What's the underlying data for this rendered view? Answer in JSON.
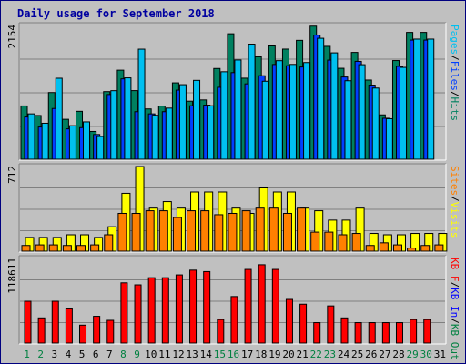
{
  "title": "Daily usage for September 2018",
  "colors": {
    "frame": "#000080",
    "background": "#c0c0c0",
    "title": "#0000a0",
    "pages": "#00c0f0",
    "files": "#0040ff",
    "hits": "#008060",
    "visits": "#ffff00",
    "sites": "#ff8000",
    "kb_in": "#0000ff",
    "kb_out": "#008040",
    "kb_f": "#ff0000",
    "weekday": "#000000",
    "weekend": "#008040"
  },
  "chart_data": [
    {
      "type": "bar",
      "panel": "top",
      "ymax_label": "2154",
      "ylim": [
        0,
        2154
      ],
      "legend": [
        "Pages",
        "Files",
        "Hits"
      ],
      "legend_sep": "/",
      "legend_colors": [
        "#00c0f0",
        "#0040ff",
        "#008060"
      ],
      "series": [
        {
          "name": "Hits",
          "color": "#008060",
          "values": [
            867,
            714,
            1081,
            653,
            781,
            459,
            1096,
            1439,
            1112,
            819,
            865,
            1236,
            943,
            963,
            1466,
            2021,
            1311,
            1653,
            1827,
            1776,
            1916,
            2143,
            1820,
            1469,
            1723,
            1281,
            724,
            1593,
            2043,
            2043
          ]
        },
        {
          "name": "Files",
          "color": "#0040ff",
          "values": [
            690,
            530,
            826,
            500,
            520,
            410,
            1050,
            1300,
            775,
            740,
            775,
            1120,
            870,
            880,
            1165,
            1400,
            1220,
            1350,
            1530,
            1510,
            1490,
            2000,
            1600,
            1330,
            1580,
            1200,
            670,
            1500,
            1920,
            1920
          ]
        },
        {
          "name": "Pages",
          "color": "#00c0f0",
          "values": [
            740,
            590,
            1310,
            551,
            612,
            378,
            1111,
            1316,
            1775,
            717,
            832,
            1207,
            1276,
            870,
            1414,
            1602,
            1855,
            1262,
            1591,
            1531,
            1561,
            1949,
            1716,
            1270,
            1527,
            1153,
            663,
            1484,
            1936,
            1936
          ]
        }
      ]
    },
    {
      "type": "bar",
      "panel": "middle",
      "ymax_label": "712",
      "ylim": [
        0,
        712
      ],
      "legend": [
        "Sites",
        "Visits"
      ],
      "legend_sep": "/",
      "legend_colors": [
        "#ff8000",
        "#ffff00"
      ],
      "series": [
        {
          "name": "Visits",
          "color": "#ffff00",
          "values": [
            122,
            122,
            122,
            144,
            144,
            122,
            211,
            489,
            712,
            366,
            420,
            366,
            500,
            500,
            500,
            366,
            322,
            534,
            500,
            500,
            366,
            344,
            266,
            266,
            366,
            155,
            144,
            144,
            155,
            155,
            155
          ]
        },
        {
          "name": "Sites",
          "color": "#ff8000",
          "values": [
            55,
            60,
            60,
            55,
            55,
            60,
            144,
            322,
            322,
            344,
            344,
            288,
            344,
            344,
            311,
            322,
            344,
            366,
            366,
            322,
            366,
            166,
            166,
            144,
            155,
            55,
            77,
            60,
            33,
            55,
            60
          ]
        }
      ]
    },
    {
      "type": "bar",
      "panel": "bottom",
      "ymax_label": "118611",
      "ylim": [
        0,
        118611
      ],
      "legend": [
        "KB F",
        "KB In",
        "KB Out"
      ],
      "legend_sep": "/",
      "legend_colors": [
        "#ff0000",
        "#0000ff",
        "#008040"
      ],
      "series": [
        {
          "name": "KB F",
          "color": "#ff0000",
          "values": [
            59300,
            36200,
            59300,
            48700,
            26100,
            38400,
            32800,
            84800,
            82000,
            91900,
            91900,
            95800,
            102400,
            100400,
            33900,
            65800,
            103400,
            109900,
            103400,
            61800,
            55200,
            29600,
            52800,
            36200,
            29600,
            29600,
            29600,
            29600,
            33900,
            33900,
            null
          ]
        }
      ]
    }
  ],
  "x_axis": {
    "labels": [
      "1",
      "2",
      "3",
      "4",
      "5",
      "6",
      "7",
      "8",
      "9",
      "10",
      "11",
      "12",
      "13",
      "14",
      "15",
      "16",
      "17",
      "18",
      "19",
      "20",
      "21",
      "22",
      "23",
      "24",
      "25",
      "26",
      "27",
      "28",
      "29",
      "30",
      "31"
    ],
    "weekend_days": [
      1,
      2,
      8,
      9,
      15,
      16,
      22,
      23,
      29,
      30
    ]
  }
}
